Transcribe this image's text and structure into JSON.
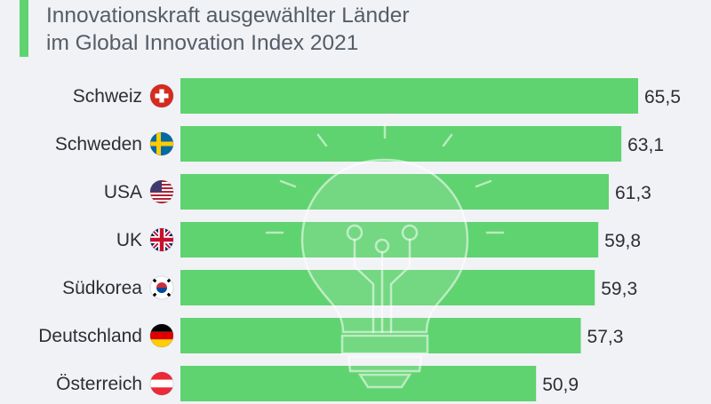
{
  "title": {
    "line1": "Innovationskraft ausgewählter Länder",
    "line2": "im Global Innovation Index 2021"
  },
  "colors": {
    "bar": "#5fd36f",
    "accent": "#5fd36f",
    "text": "#2b2f33",
    "background": "#f0f2f6"
  },
  "chart_data": {
    "type": "bar",
    "orientation": "horizontal",
    "title": "Innovationskraft ausgewählter Länder im Global Innovation Index 2021",
    "categories": [
      "Schweiz",
      "Schweden",
      "USA",
      "UK",
      "Südkorea",
      "Deutschland",
      "Österreich"
    ],
    "value_labels": [
      "65,5",
      "63,1",
      "61,3",
      "59,8",
      "59,3",
      "57,3",
      "50,9"
    ],
    "values": [
      65.5,
      63.1,
      61.3,
      59.8,
      59.3,
      57.3,
      50.9
    ],
    "flags": [
      "flag-switzerland-icon",
      "flag-sweden-icon",
      "flag-usa-icon",
      "flag-uk-icon",
      "flag-south-korea-icon",
      "flag-germany-icon",
      "flag-austria-icon"
    ],
    "decoration": "lightbulb-icon",
    "xlim": [
      0,
      65.5
    ],
    "grid": false,
    "legend": "none"
  }
}
